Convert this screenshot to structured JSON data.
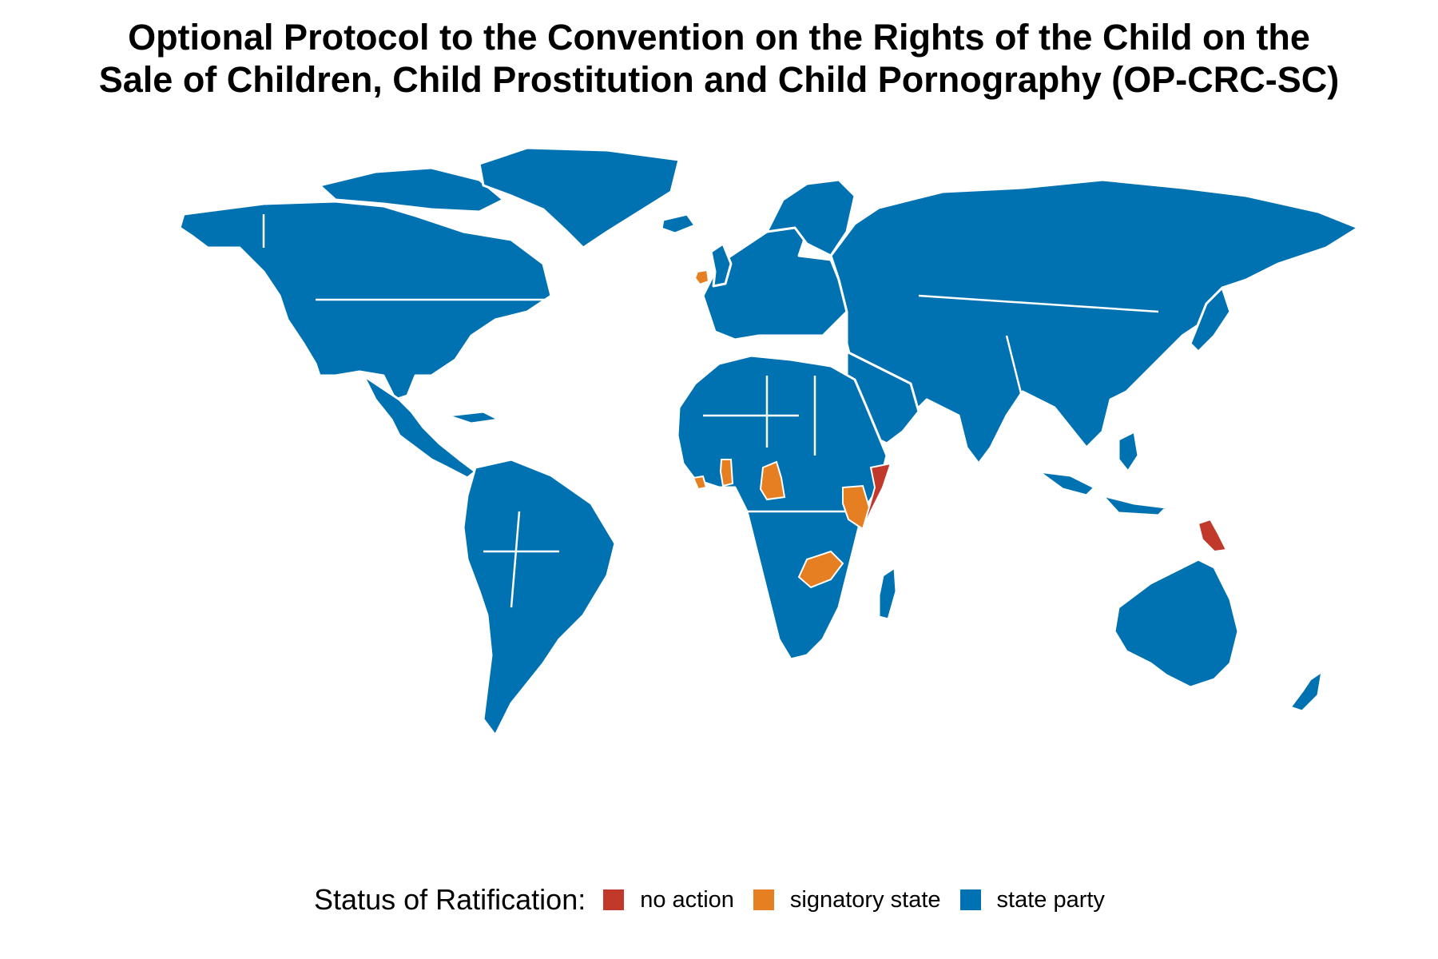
{
  "title": {
    "line1": "Optional Protocol to the Convention on the Rights of the Child on the",
    "line2": "Sale of Children, Child Prostitution and Child Pornography (OP-CRC-SC)"
  },
  "legend": {
    "title": "Status of Ratification:",
    "items": [
      {
        "label": "no action",
        "color": "#c0392b"
      },
      {
        "label": "signatory state",
        "color": "#e67e22"
      },
      {
        "label": "state party",
        "color": "#0072b2"
      }
    ]
  },
  "colors": {
    "no_action": "#c0392b",
    "signatory_state": "#e67e22",
    "state_party": "#0072b2",
    "border": "#ffffff"
  },
  "regions": {
    "no_action": [
      "Somalia",
      "Papua New Guinea"
    ],
    "signatory_state": [
      "Ireland",
      "Liberia",
      "Ghana",
      "Cameroon",
      "Kenya",
      "Zambia"
    ]
  }
}
